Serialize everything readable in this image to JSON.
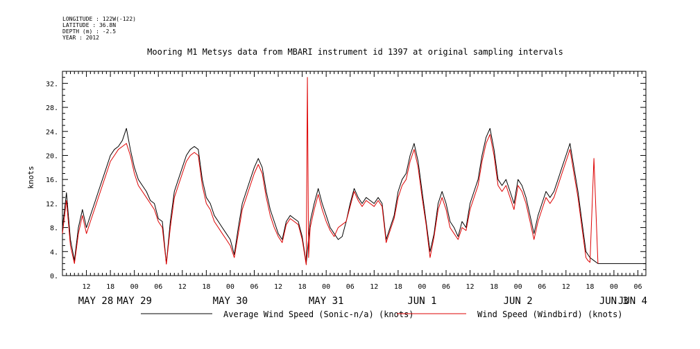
{
  "header": {
    "meta": [
      "LONGITUDE : 122W(-122)",
      "LATITUDE : 36.8N",
      "DEPTH (m) : -2.5",
      "YEAR : 2012"
    ],
    "title": "Mooring M1 Metsys data from MBARI instrument id 1397 at original sampling intervals"
  },
  "chart_data": {
    "type": "line",
    "title": "Mooring M1 Metsys data from MBARI instrument id 1397 at original sampling intervals",
    "ylabel": "knots",
    "xlabel": "",
    "ylim": [
      0,
      34
    ],
    "yticks": [
      0,
      4,
      8,
      12,
      16,
      20,
      24,
      28,
      32
    ],
    "ytick_labels": [
      "0.",
      "4.",
      "8.",
      "12.",
      "16.",
      "20.",
      "24.",
      "28.",
      "32."
    ],
    "x_unit": "hours since May 28 00:00, 2012",
    "xlim": [
      6,
      152
    ],
    "xticks": [
      12,
      18,
      24,
      30,
      36,
      42,
      48,
      54,
      60,
      66,
      72,
      78,
      84,
      90,
      96,
      102,
      108,
      114,
      120,
      126,
      132,
      138,
      144,
      150
    ],
    "xtick_labels": [
      "12",
      "18",
      "00",
      "06",
      "12",
      "18",
      "00",
      "06",
      "12",
      "18",
      "00",
      "06",
      "12",
      "18",
      "00",
      "06",
      "12",
      "18",
      "00",
      "06",
      "12",
      "18",
      "00",
      "06"
    ],
    "date_labels": [
      {
        "label": "MAY 28",
        "at": 0
      },
      {
        "label": "MAY 29",
        "at": 24
      },
      {
        "label": "MAY 30",
        "at": 48
      },
      {
        "label": "MAY 31",
        "at": 72
      },
      {
        "label": "JUN  1",
        "at": 96
      },
      {
        "label": "JUN  2",
        "at": 120
      },
      {
        "label": "JUN  3",
        "at": 144
      },
      {
        "label": "JUN  4",
        "at": 160
      }
    ],
    "legend": "bottom",
    "grid": false,
    "series": [
      {
        "name": "Average Wind Speed (Sonic-n/a) (knots)",
        "color": "#000000",
        "x": [
          6,
          7,
          8,
          9,
          10,
          11,
          12,
          13,
          14,
          15,
          16,
          17,
          18,
          19,
          20,
          21,
          22,
          23,
          24,
          25,
          26,
          27,
          28,
          29,
          30,
          31,
          32,
          33,
          34,
          35,
          36,
          37,
          38,
          39,
          40,
          41,
          42,
          43,
          44,
          45,
          46,
          47,
          48,
          49,
          50,
          51,
          52,
          53,
          54,
          55,
          56,
          57,
          58,
          59,
          60,
          61,
          62,
          63,
          64,
          65,
          66,
          67,
          68,
          69,
          70,
          71,
          72,
          73,
          74,
          75,
          76,
          77,
          78,
          79,
          80,
          81,
          82,
          83,
          84,
          85,
          86,
          87,
          88,
          89,
          90,
          91,
          92,
          93,
          94,
          95,
          96,
          97,
          98,
          99,
          100,
          101,
          102,
          103,
          104,
          105,
          106,
          107,
          108,
          109,
          110,
          111,
          112,
          113,
          114,
          115,
          116,
          117,
          118,
          119,
          120,
          121,
          122,
          123,
          124,
          125,
          126,
          127,
          128,
          129,
          130,
          131,
          132,
          133,
          134,
          135,
          136,
          137,
          138,
          139,
          140,
          141,
          142,
          143,
          144,
          145,
          146,
          147,
          148,
          149,
          150,
          151,
          152
        ],
        "values": [
          8.0,
          13.8,
          6.0,
          2.5,
          8.0,
          11.0,
          8.0,
          10.0,
          12.0,
          14.0,
          16.0,
          18.0,
          20.0,
          21.0,
          21.5,
          22.5,
          24.5,
          21.0,
          18.0,
          16.0,
          15.0,
          14.0,
          12.5,
          12.0,
          9.5,
          9.0,
          2.0,
          9.0,
          14.0,
          16.0,
          18.0,
          20.0,
          21.0,
          21.5,
          21.0,
          16.0,
          13.0,
          12.0,
          10.0,
          9.0,
          8.0,
          7.0,
          6.0,
          3.5,
          8.0,
          12.0,
          14.0,
          16.0,
          18.0,
          19.5,
          18.0,
          14.0,
          11.0,
          9.0,
          7.0,
          6.0,
          9.0,
          10.0,
          9.5,
          9.0,
          6.5,
          2.0,
          9.0,
          12.0,
          14.5,
          12.0,
          10.0,
          8.0,
          7.0,
          6.0,
          6.5,
          9.0,
          12.0,
          14.5,
          13.0,
          12.0,
          13.0,
          12.5,
          12.0,
          13.0,
          12.0,
          6.0,
          8.0,
          10.0,
          14.0,
          16.0,
          17.0,
          20.0,
          22.0,
          19.0,
          14.0,
          9.0,
          4.0,
          7.0,
          12.0,
          14.0,
          12.0,
          9.0,
          8.0,
          6.5,
          9.0,
          8.0,
          12.0,
          14.0,
          16.0,
          20.0,
          23.0,
          24.5,
          21.0,
          16.0,
          15.0,
          16.0,
          14.0,
          12.0,
          16.0,
          15.0,
          13.0,
          10.0,
          7.0,
          10.0,
          12.0,
          14.0,
          13.0,
          14.0,
          16.0,
          18.0,
          20.0,
          22.0,
          18.0,
          14.0,
          9.0,
          4.0,
          3.0,
          2.5,
          2.0,
          2.0,
          2.0,
          2.0,
          2.0,
          2.0,
          2.0,
          2.0,
          2.0,
          2.0,
          2.0,
          2.0,
          2.0
        ]
      },
      {
        "name": "Wind Speed (Windbird) (knots)",
        "color": "#dd0000",
        "x": [
          6,
          7,
          8,
          9,
          10,
          11,
          12,
          13,
          14,
          15,
          16,
          17,
          18,
          19,
          20,
          21,
          22,
          23,
          24,
          25,
          26,
          27,
          28,
          29,
          30,
          31,
          32,
          33,
          34,
          35,
          36,
          37,
          38,
          39,
          40,
          41,
          42,
          43,
          44,
          45,
          46,
          47,
          48,
          49,
          50,
          51,
          52,
          53,
          54,
          55,
          56,
          57,
          58,
          59,
          60,
          61,
          62,
          63,
          64,
          65,
          66,
          67,
          67.3,
          67.6,
          68,
          69,
          70,
          71,
          72,
          73,
          74,
          75,
          76,
          77,
          78,
          79,
          80,
          81,
          82,
          83,
          84,
          85,
          86,
          87,
          88,
          89,
          90,
          91,
          92,
          93,
          94,
          95,
          96,
          97,
          98,
          99,
          100,
          101,
          102,
          103,
          104,
          105,
          106,
          107,
          108,
          109,
          110,
          111,
          112,
          113,
          114,
          115,
          116,
          117,
          118,
          119,
          120,
          121,
          122,
          123,
          124,
          125,
          126,
          127,
          128,
          129,
          130,
          131,
          132,
          133,
          134,
          135,
          136,
          137,
          137.5,
          138,
          139,
          140
        ],
        "values": [
          7.0,
          12.5,
          5.0,
          2.0,
          7.0,
          10.0,
          7.0,
          9.0,
          11.0,
          13.0,
          15.0,
          17.0,
          19.0,
          20.0,
          21.0,
          21.5,
          22.0,
          20.0,
          17.0,
          15.0,
          14.0,
          13.0,
          12.0,
          11.0,
          9.0,
          8.0,
          1.9,
          8.0,
          13.0,
          15.0,
          17.0,
          19.0,
          20.0,
          20.5,
          20.0,
          15.0,
          12.0,
          11.0,
          9.0,
          8.0,
          7.0,
          6.0,
          5.0,
          3.0,
          7.0,
          11.0,
          13.0,
          15.0,
          17.0,
          18.5,
          17.0,
          13.0,
          10.0,
          8.0,
          6.5,
          5.5,
          8.5,
          9.5,
          9.0,
          8.5,
          6.0,
          1.8,
          33.0,
          3.0,
          8.0,
          11.0,
          13.5,
          11.0,
          9.0,
          7.5,
          6.5,
          8.0,
          8.5,
          9.0,
          11.5,
          14.0,
          12.5,
          11.5,
          12.5,
          12.0,
          11.5,
          12.5,
          11.5,
          5.5,
          7.5,
          9.5,
          13.0,
          15.0,
          16.0,
          19.0,
          21.0,
          18.0,
          13.0,
          8.5,
          3.0,
          6.5,
          11.0,
          13.0,
          11.0,
          8.0,
          7.0,
          6.0,
          8.0,
          7.5,
          11.0,
          13.0,
          15.0,
          19.0,
          22.0,
          23.5,
          20.0,
          15.0,
          14.0,
          15.0,
          13.0,
          11.0,
          15.0,
          14.0,
          12.0,
          9.0,
          6.0,
          9.0,
          11.0,
          13.0,
          12.0,
          13.0,
          15.0,
          17.0,
          19.0,
          21.0,
          17.0,
          13.0,
          8.0,
          3.0,
          2.5,
          2.2,
          19.5,
          2.0
        ]
      }
    ]
  }
}
